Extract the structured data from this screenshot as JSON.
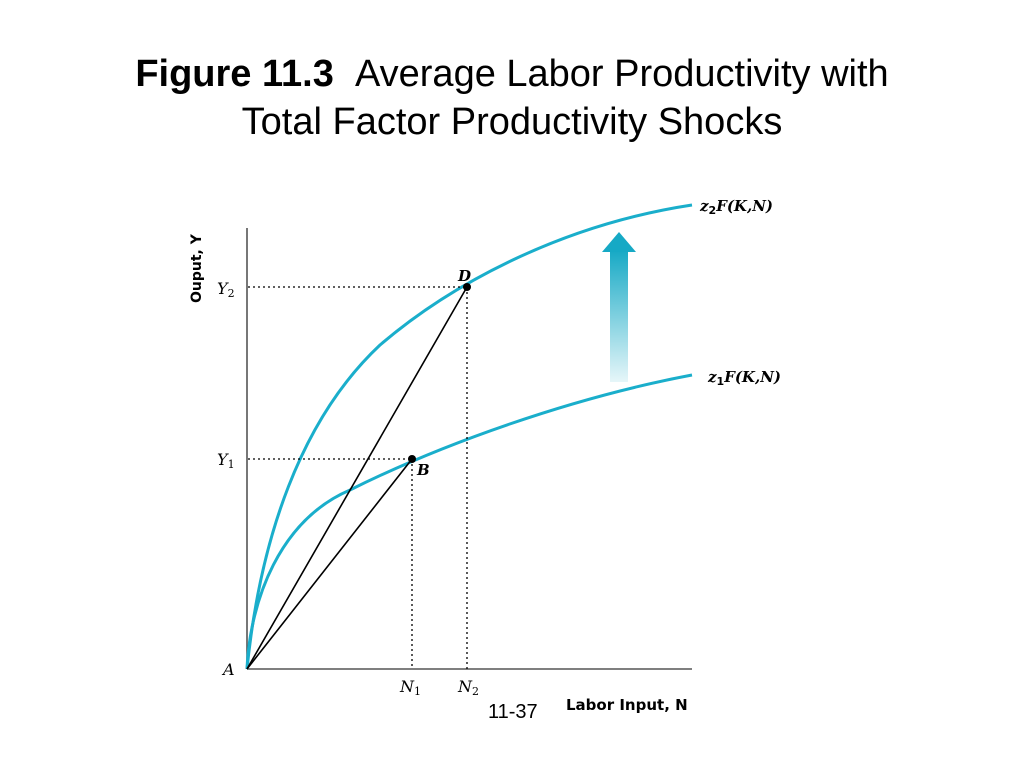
{
  "title": {
    "figure_number": "Figure 11.3",
    "line1": "Average Labor Productivity with",
    "line2": "Total Factor Productivity Shocks"
  },
  "page_number": "11-37",
  "axes": {
    "y_label": "Ouput, Y",
    "x_label": "Labor Input, N",
    "origin_label": "A"
  },
  "ticks": {
    "y": [
      {
        "main": "Y",
        "sub": "2"
      },
      {
        "main": "Y",
        "sub": "1"
      }
    ],
    "x": [
      {
        "main": "N",
        "sub": "1"
      },
      {
        "main": "N",
        "sub": "2"
      }
    ]
  },
  "curves": [
    {
      "label_main": "z",
      "label_sub": "2",
      "label_rest": "F(K,N)"
    },
    {
      "label_main": "z",
      "label_sub": "1",
      "label_rest": "F(K,N)"
    }
  ],
  "points": {
    "D": "D",
    "B": "B"
  },
  "colors": {
    "curve": "#1aaecb",
    "arrow_top": "#16a9c5",
    "arrow_bottom": "#e6f6f9",
    "lines": "#000000",
    "axis": "#555555"
  }
}
